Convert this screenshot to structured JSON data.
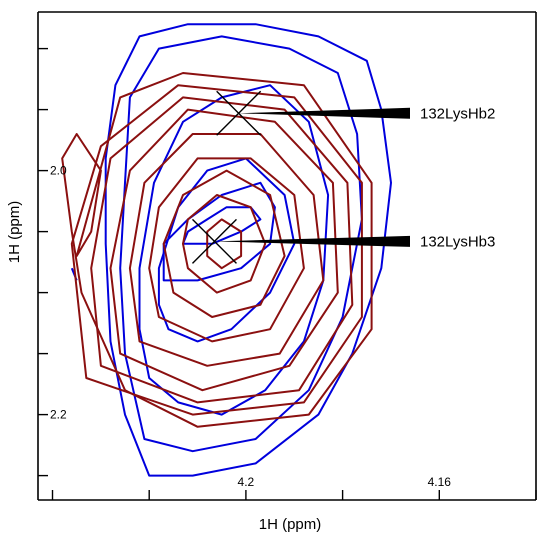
{
  "chart_data": {
    "type": "contour",
    "xlabel": "1H (ppm)",
    "ylabel": "1H (ppm)",
    "x_axis": {
      "reversed": true,
      "range": [
        4.243,
        4.14
      ],
      "tick_labels": [
        {
          "value": 4.2,
          "label": "4.2"
        },
        {
          "value": 4.16,
          "label": "4.16"
        }
      ],
      "minor_ticks": [
        4.24,
        4.22,
        4.18,
        4.14
      ]
    },
    "y_axis": {
      "reversed": true,
      "range": [
        1.87,
        2.27
      ],
      "tick_labels": [
        {
          "value": 2.0,
          "label": "2.0"
        },
        {
          "value": 2.2,
          "label": "2.2"
        }
      ],
      "minor_ticks": [
        1.9,
        1.95,
        2.05,
        2.1,
        2.15,
        2.25
      ]
    },
    "series": [
      {
        "color": "#0000dd",
        "contours": [
          [
            [
              4.216,
              2.13
            ],
            [
              4.21,
              2.14
            ],
            [
              4.203,
              2.13
            ],
            [
              4.195,
              2.1
            ],
            [
              4.19,
              2.06
            ],
            [
              4.192,
              2.02
            ],
            [
              4.2,
              1.99
            ],
            [
              4.208,
              2.0
            ],
            [
              4.214,
              2.03
            ],
            [
              4.218,
              2.08
            ],
            [
              4.218,
              2.11
            ]
          ],
          [
            [
              4.22,
              2.17
            ],
            [
              4.214,
              2.19
            ],
            [
              4.205,
              2.2
            ],
            [
              4.196,
              2.18
            ],
            [
              4.188,
              2.14
            ],
            [
              4.184,
              2.09
            ],
            [
              4.183,
              2.02
            ],
            [
              4.187,
              1.96
            ],
            [
              4.195,
              1.93
            ],
            [
              4.205,
              1.94
            ],
            [
              4.213,
              1.96
            ],
            [
              4.219,
              2.01
            ],
            [
              4.222,
              2.08
            ],
            [
              4.222,
              2.13
            ]
          ],
          [
            [
              4.221,
              2.22
            ],
            [
              4.211,
              2.23
            ],
            [
              4.198,
              2.22
            ],
            [
              4.187,
              2.18
            ],
            [
              4.18,
              2.12
            ],
            [
              4.176,
              2.04
            ],
            [
              4.177,
              1.97
            ],
            [
              4.181,
              1.92
            ],
            [
              4.191,
              1.9
            ],
            [
              4.205,
              1.89
            ],
            [
              4.218,
              1.9
            ],
            [
              4.224,
              1.94
            ],
            [
              4.225,
              2.01
            ],
            [
              4.226,
              2.08
            ],
            [
              4.225,
              2.15
            ]
          ],
          [
            [
              4.22,
              2.25
            ],
            [
              4.211,
              2.25
            ],
            [
              4.198,
              2.24
            ],
            [
              4.185,
              2.2
            ],
            [
              4.178,
              2.15
            ],
            [
              4.172,
              2.08
            ],
            [
              4.17,
              2.01
            ],
            [
              4.172,
              1.95
            ],
            [
              4.175,
              1.91
            ],
            [
              4.185,
              1.89
            ],
            [
              4.198,
              1.88
            ],
            [
              4.212,
              1.88
            ],
            [
              4.222,
              1.89
            ],
            [
              4.227,
              1.93
            ],
            [
              4.229,
              1.99
            ],
            [
              4.229,
              2.06
            ],
            [
              4.228,
              2.14
            ],
            [
              4.225,
              2.2
            ]
          ],
          [
            [
              4.213,
              2.06
            ],
            [
              4.207,
              2.06
            ],
            [
              4.201,
              2.05
            ],
            [
              4.197,
              2.04
            ],
            [
              4.199,
              2.03
            ],
            [
              4.204,
              2.03
            ],
            [
              4.208,
              2.04
            ],
            [
              4.212,
              2.05
            ]
          ],
          [
            [
              4.217,
              2.09
            ],
            [
              4.21,
              2.09
            ],
            [
              4.201,
              2.08
            ],
            [
              4.195,
              2.06
            ],
            [
              4.194,
              2.03
            ],
            [
              4.197,
              2.01
            ],
            [
              4.205,
              2.02
            ],
            [
              4.212,
              2.04
            ],
            [
              4.217,
              2.06
            ]
          ],
          [
            [
              4.235,
              2.09
            ],
            [
              4.236,
              2.08
            ]
          ]
        ]
      },
      {
        "color": "#8b1010",
        "contours": [
          [
            [
              4.208,
              2.07
            ],
            [
              4.205,
              2.08
            ],
            [
              4.201,
              2.07
            ],
            [
              4.201,
              2.05
            ],
            [
              4.205,
              2.04
            ],
            [
              4.208,
              2.05
            ]
          ],
          [
            [
              4.212,
              2.08
            ],
            [
              4.206,
              2.1
            ],
            [
              4.199,
              2.09
            ],
            [
              4.196,
              2.06
            ],
            [
              4.199,
              2.03
            ],
            [
              4.206,
              2.02
            ],
            [
              4.212,
              2.04
            ],
            [
              4.213,
              2.06
            ]
          ],
          [
            [
              4.215,
              2.1
            ],
            [
              4.207,
              2.12
            ],
            [
              4.197,
              2.11
            ],
            [
              4.192,
              2.07
            ],
            [
              4.195,
              2.02
            ],
            [
              4.204,
              2.0
            ],
            [
              4.213,
              2.02
            ],
            [
              4.217,
              2.06
            ]
          ],
          [
            [
              4.218,
              2.12
            ],
            [
              4.207,
              2.14
            ],
            [
              4.195,
              2.13
            ],
            [
              4.188,
              2.08
            ],
            [
              4.19,
              2.02
            ],
            [
              4.199,
              1.99
            ],
            [
              4.21,
              1.99
            ],
            [
              4.218,
              2.03
            ],
            [
              4.22,
              2.08
            ]
          ],
          [
            [
              4.222,
              2.14
            ],
            [
              4.208,
              2.16
            ],
            [
              4.193,
              2.15
            ],
            [
              4.184,
              2.09
            ],
            [
              4.186,
              2.02
            ],
            [
              4.197,
              1.97
            ],
            [
              4.211,
              1.97
            ],
            [
              4.221,
              2.01
            ],
            [
              4.224,
              2.08
            ]
          ],
          [
            [
              4.226,
              2.15
            ],
            [
              4.209,
              2.18
            ],
            [
              4.191,
              2.16
            ],
            [
              4.181,
              2.1
            ],
            [
              4.182,
              2.01
            ],
            [
              4.194,
              1.96
            ],
            [
              4.212,
              1.95
            ],
            [
              4.224,
              2.0
            ],
            [
              4.228,
              2.08
            ]
          ],
          [
            [
              4.23,
              2.16
            ],
            [
              4.21,
              2.19
            ],
            [
              4.189,
              2.18
            ],
            [
              4.178,
              2.11
            ],
            [
              4.179,
              2.01
            ],
            [
              4.192,
              1.95
            ],
            [
              4.213,
              1.94
            ],
            [
              4.228,
              1.99
            ],
            [
              4.232,
              2.08
            ]
          ],
          [
            [
              4.233,
              2.17
            ],
            [
              4.211,
              2.2
            ],
            [
              4.188,
              2.19
            ],
            [
              4.176,
              2.12
            ],
            [
              4.176,
              2.01
            ],
            [
              4.19,
              1.94
            ],
            [
              4.214,
              1.93
            ],
            [
              4.23,
              1.98
            ],
            [
              4.236,
              2.06
            ]
          ],
          [
            [
              4.235,
              2.07
            ],
            [
              4.232,
              2.05
            ],
            [
              4.23,
              2.0
            ],
            [
              4.235,
              1.97
            ],
            [
              4.238,
              1.99
            ],
            [
              4.236,
              2.05
            ],
            [
              4.234,
              2.1
            ],
            [
              4.225,
              2.18
            ],
            [
              4.21,
              2.21
            ],
            [
              4.187,
              2.2
            ],
            [
              4.174,
              2.13
            ],
            [
              4.174,
              2.01
            ],
            [
              4.188,
              1.93
            ],
            [
              4.213,
              1.92
            ],
            [
              4.226,
              1.94
            ]
          ]
        ]
      }
    ],
    "peaks": [
      {
        "label": "132LysHb2",
        "x": 4.2015,
        "y": 1.953
      },
      {
        "label": "132LysHb3",
        "x": 4.2065,
        "y": 2.058
      }
    ]
  }
}
